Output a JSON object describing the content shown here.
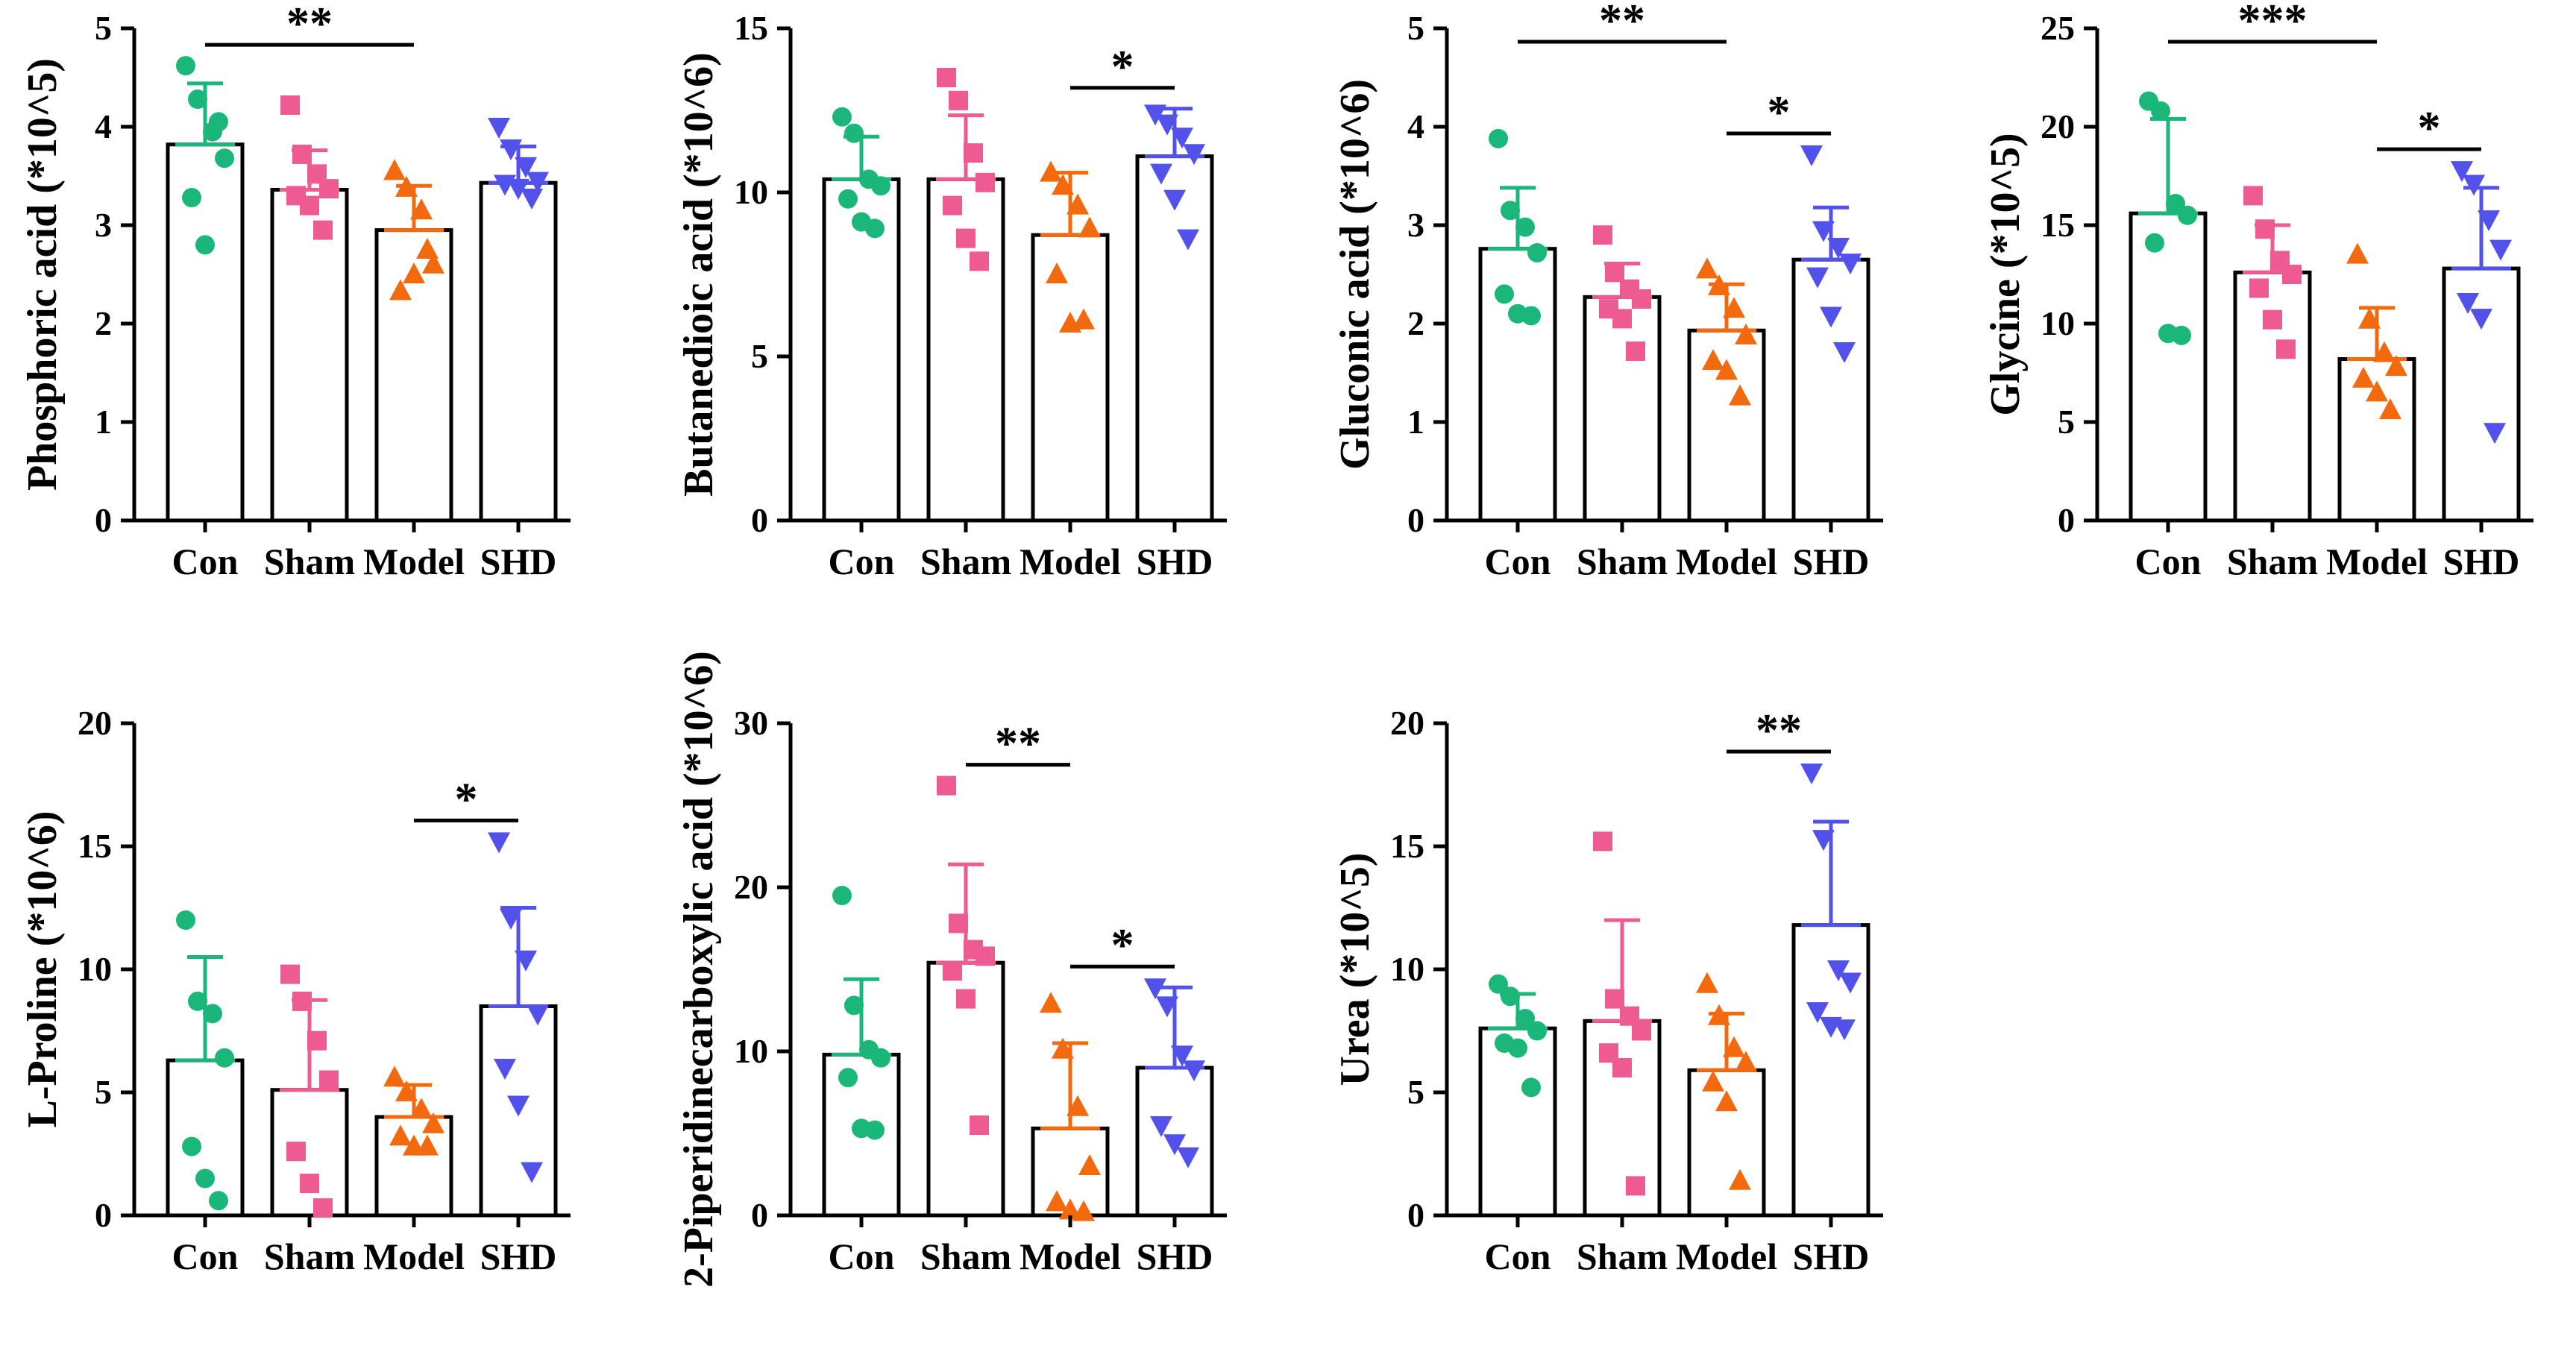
{
  "chart_data": [
    {
      "type": "bar",
      "title": "",
      "ylabel": "Phosphoric acid (*10^5)",
      "categories": [
        "Con",
        "Sham",
        "Model",
        "SHD"
      ],
      "ylim": [
        0,
        5
      ],
      "yticks": [
        "0",
        "1",
        "2",
        "3",
        "4",
        "5"
      ],
      "values": [
        3.82,
        3.36,
        2.95,
        3.43
      ],
      "sd": [
        0.62,
        0.4,
        0.45,
        0.37
      ],
      "points": [
        [
          4.62,
          4.28,
          3.95,
          3.68,
          3.28,
          2.8,
          4.05
        ],
        [
          4.22,
          3.72,
          3.52,
          3.37,
          3.3,
          3.2,
          2.95
        ],
        [
          3.55,
          3.38,
          3.15,
          2.6,
          2.33,
          2.5,
          2.75
        ],
        [
          4.0,
          3.78,
          3.6,
          3.45,
          3.42,
          3.38,
          3.28
        ]
      ],
      "significance": [
        {
          "from": "Con",
          "to": "Model",
          "label": "**"
        }
      ]
    },
    {
      "type": "bar",
      "title": "",
      "ylabel": "Butanedioic acid (*10^6)",
      "categories": [
        "Con",
        "Sham",
        "Model",
        "SHD"
      ],
      "ylim": [
        0,
        15
      ],
      "yticks": [
        "0",
        "5",
        "10",
        "15"
      ],
      "values": [
        10.4,
        10.4,
        8.7,
        11.1
      ],
      "sd": [
        1.3,
        1.95,
        1.9,
        1.45
      ],
      "points": [
        [
          12.3,
          11.8,
          10.4,
          10.2,
          9.8,
          9.1,
          8.9
        ],
        [
          13.5,
          12.8,
          11.2,
          10.3,
          9.6,
          8.6,
          7.9
        ],
        [
          10.6,
          10.2,
          9.6,
          8.9,
          7.5,
          6.0,
          6.1
        ],
        [
          12.4,
          12.1,
          11.7,
          11.2,
          10.6,
          9.8,
          8.6
        ]
      ],
      "significance": [
        {
          "from": "Model",
          "to": "SHD",
          "label": "*"
        }
      ]
    },
    {
      "type": "bar",
      "title": "",
      "ylabel": "Gluconic acid (*10^6)",
      "categories": [
        "Con",
        "Sham",
        "Model",
        "SHD"
      ],
      "ylim": [
        0,
        5
      ],
      "yticks": [
        "0",
        "1",
        "2",
        "3",
        "4",
        "5"
      ],
      "values": [
        2.76,
        2.27,
        1.93,
        2.65
      ],
      "sd": [
        0.62,
        0.34,
        0.47,
        0.53
      ],
      "points": [
        [
          3.88,
          3.15,
          2.98,
          2.72,
          2.3,
          2.1,
          2.08
        ],
        [
          2.9,
          2.52,
          2.35,
          2.25,
          2.15,
          2.05,
          1.72
        ],
        [
          2.55,
          2.38,
          2.15,
          1.88,
          1.62,
          1.52,
          1.26
        ],
        [
          3.72,
          2.95,
          2.78,
          2.62,
          2.48,
          2.08,
          1.72
        ]
      ],
      "significance": [
        {
          "from": "Con",
          "to": "Model",
          "label": "**"
        },
        {
          "from": "Model",
          "to": "SHD",
          "label": "*"
        }
      ]
    },
    {
      "type": "bar",
      "title": "",
      "ylabel": "Glycine (*10^5)",
      "categories": [
        "Con",
        "Sham",
        "Model",
        "SHD"
      ],
      "ylim": [
        0,
        25
      ],
      "yticks": [
        "0",
        "5",
        "10",
        "15",
        "20",
        "25"
      ],
      "values": [
        15.6,
        12.6,
        8.2,
        12.8
      ],
      "sd": [
        4.8,
        2.4,
        2.6,
        4.1
      ],
      "points": [
        [
          21.3,
          20.8,
          16.1,
          15.5,
          14.1,
          9.5,
          9.4
        ],
        [
          16.5,
          14.8,
          13.2,
          12.5,
          11.8,
          10.2,
          8.7
        ],
        [
          13.5,
          10.2,
          8.5,
          7.8,
          7.2,
          6.5,
          5.6
        ],
        [
          17.8,
          17.1,
          15.3,
          13.8,
          11.1,
          10.3,
          4.5
        ]
      ],
      "significance": [
        {
          "from": "Con",
          "to": "Model",
          "label": "***"
        },
        {
          "from": "Model",
          "to": "SHD",
          "label": "*"
        }
      ]
    },
    {
      "type": "bar",
      "title": "",
      "ylabel": "L-Proline (*10^6)",
      "categories": [
        "Con",
        "Sham",
        "Model",
        "SHD"
      ],
      "ylim": [
        0,
        20
      ],
      "yticks": [
        "0",
        "5",
        "10",
        "15",
        "20"
      ],
      "values": [
        6.3,
        5.1,
        4.0,
        8.5
      ],
      "sd": [
        4.2,
        3.65,
        1.3,
        4.0
      ],
      "points": [
        [
          12.0,
          8.7,
          8.2,
          6.4,
          2.8,
          1.5,
          0.6
        ],
        [
          9.8,
          8.7,
          7.1,
          5.5,
          2.6,
          1.3,
          0.3
        ],
        [
          5.6,
          5.0,
          4.3,
          3.7,
          3.2,
          2.8,
          2.8
        ],
        [
          15.2,
          12.1,
          10.4,
          8.2,
          6.0,
          4.5,
          1.8
        ]
      ],
      "significance": [
        {
          "from": "Model",
          "to": "SHD",
          "label": "*"
        }
      ]
    },
    {
      "type": "bar",
      "title": "",
      "ylabel": "2-Piperidinecarboxylic acid (*10^6)",
      "categories": [
        "Con",
        "Sham",
        "Model",
        "SHD"
      ],
      "ylim": [
        0,
        30
      ],
      "yticks": [
        "0",
        "10",
        "20",
        "30"
      ],
      "values": [
        9.8,
        15.4,
        5.3,
        9.0
      ],
      "sd": [
        4.6,
        6.0,
        5.2,
        4.9
      ],
      "points": [
        [
          19.5,
          12.8,
          10.1,
          9.6,
          8.4,
          5.3,
          5.2
        ],
        [
          26.2,
          17.8,
          16.2,
          15.8,
          14.9,
          13.2,
          5.5
        ],
        [
          12.9,
          10.1,
          6.6,
          3.0,
          0.8,
          0.3,
          0.2
        ],
        [
          13.9,
          12.8,
          9.8,
          8.9,
          5.5,
          4.4,
          3.6
        ]
      ],
      "significance": [
        {
          "from": "Sham",
          "to": "Model",
          "label": "**"
        },
        {
          "from": "Model",
          "to": "SHD",
          "label": "*"
        }
      ]
    },
    {
      "type": "bar",
      "title": "",
      "ylabel": "Urea (*10^5)",
      "categories": [
        "Con",
        "Sham",
        "Model",
        "SHD"
      ],
      "ylim": [
        0,
        20
      ],
      "yticks": [
        "0",
        "5",
        "10",
        "15",
        "20"
      ],
      "values": [
        7.6,
        7.9,
        5.9,
        11.8
      ],
      "sd": [
        1.4,
        4.1,
        2.3,
        4.2
      ],
      "points": [
        [
          9.4,
          8.9,
          8.0,
          7.5,
          7.0,
          6.8,
          5.2
        ],
        [
          15.2,
          8.8,
          8.1,
          7.5,
          6.6,
          6.0,
          1.2
        ],
        [
          9.4,
          8.1,
          6.8,
          6.2,
          5.4,
          4.6,
          1.4
        ],
        [
          18.0,
          15.3,
          10.0,
          9.5,
          8.3,
          7.7,
          7.6
        ]
      ],
      "significance": [
        {
          "from": "Model",
          "to": "SHD",
          "label": "**"
        }
      ]
    }
  ],
  "colors": {
    "Con": "#1bb67a",
    "Sham": "#ee5b92",
    "Model": "#f3690d",
    "SHD": "#5252ea",
    "axis": "#000000"
  },
  "markers": {
    "Con": "circle",
    "Sham": "square",
    "Model": "triangle-up",
    "SHD": "triangle-down"
  }
}
